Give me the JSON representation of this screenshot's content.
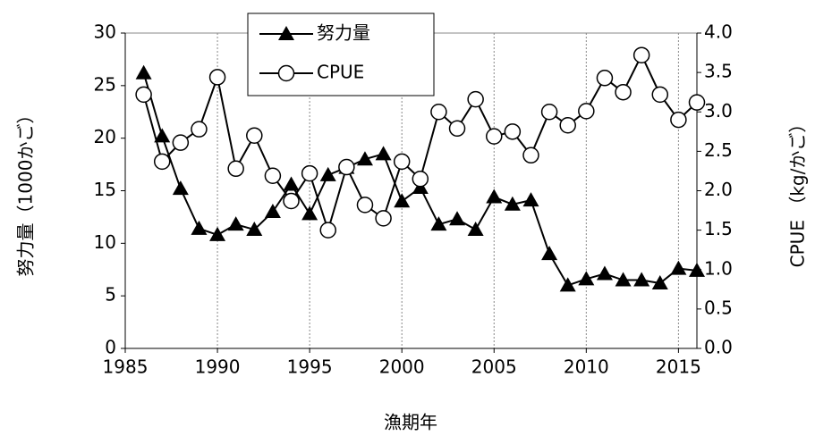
{
  "chart_data": {
    "type": "line",
    "x_label": "漁期年",
    "y_label": "努力量（1000かご）",
    "y2_label": "CPUE （kg/かご）",
    "x": [
      1986,
      1987,
      1988,
      1989,
      1990,
      1991,
      1992,
      1993,
      1994,
      1995,
      1996,
      1997,
      1998,
      1999,
      2000,
      2001,
      2002,
      2003,
      2004,
      2005,
      2006,
      2007,
      2008,
      2009,
      2010,
      2011,
      2012,
      2013,
      2014,
      2015,
      2016
    ],
    "series": [
      {
        "name": "努力量",
        "color": "#000000",
        "marker": "triangle",
        "axis": "y",
        "values": [
          26.2,
          20.2,
          15.2,
          11.4,
          10.8,
          11.8,
          11.3,
          13.0,
          15.6,
          12.8,
          16.5,
          17.2,
          18.0,
          18.5,
          14.0,
          15.3,
          11.8,
          12.3,
          11.3,
          14.4,
          13.7,
          14.1,
          9.0,
          6.0,
          6.6,
          7.1,
          6.5,
          6.5,
          6.2,
          7.6,
          7.4
        ]
      },
      {
        "name": "CPUE",
        "color": "#000000",
        "marker": "circle",
        "axis": "y2",
        "values": [
          3.22,
          2.37,
          2.61,
          2.78,
          3.44,
          2.28,
          2.7,
          2.19,
          1.87,
          2.22,
          1.5,
          2.3,
          1.82,
          1.65,
          2.37,
          2.15,
          3.0,
          2.79,
          3.16,
          2.69,
          2.75,
          2.45,
          3.0,
          2.83,
          3.01,
          3.43,
          3.25,
          3.72,
          3.22,
          2.9,
          3.12
        ]
      }
    ],
    "xlim": [
      1985,
      2016
    ],
    "xticks": [
      1985,
      1990,
      1995,
      2000,
      2005,
      2010,
      2015
    ],
    "ylim": [
      0,
      30
    ],
    "yticks": [
      0,
      5,
      10,
      15,
      20,
      25,
      30
    ],
    "y2lim": [
      0,
      4
    ],
    "y2ticks": [
      {
        "value": 0,
        "label": "0.0"
      },
      0.5,
      {
        "value": 1,
        "label": "1.0"
      },
      1.5,
      {
        "value": 2,
        "label": "2.0"
      },
      2.5,
      {
        "value": 3,
        "label": "3.0"
      },
      3.5,
      {
        "value": 4,
        "label": "4.0"
      }
    ],
    "x_grid": true
  }
}
